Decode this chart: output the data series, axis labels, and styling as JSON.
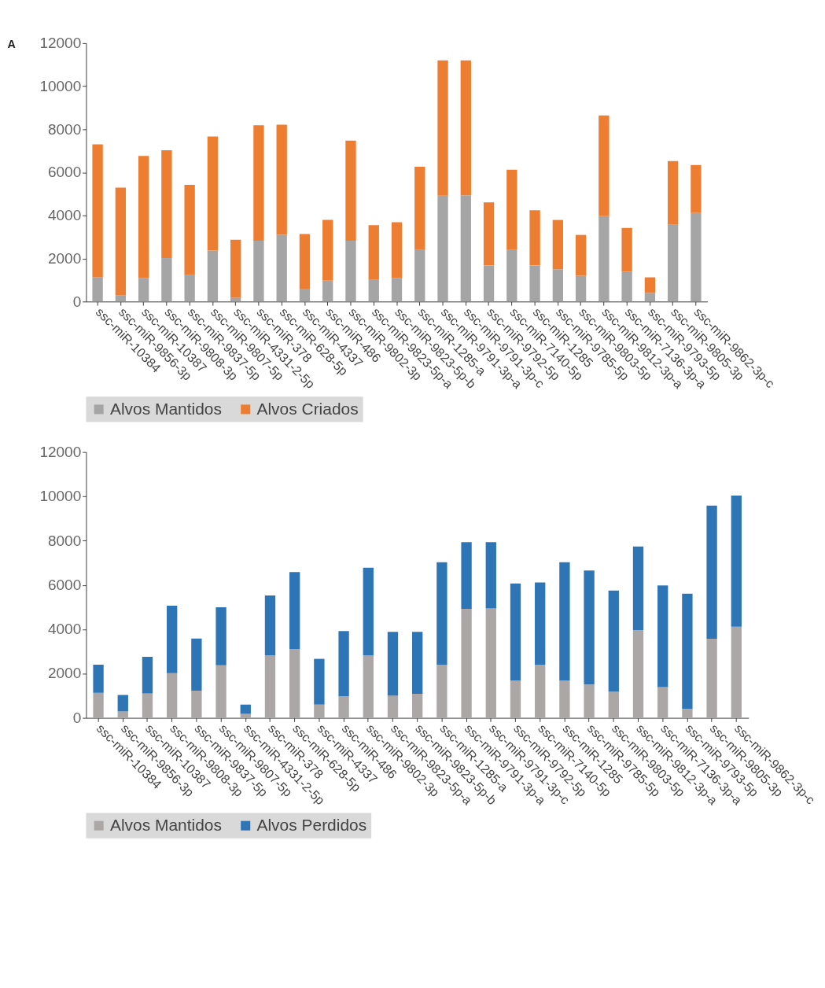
{
  "chart_data": [
    {
      "type": "bar",
      "stacked": true,
      "legend": "bottom",
      "annotations": [
        "A"
      ],
      "categories": [
        "ssc-miR-10384",
        "ssc-miR-9856-3p",
        "ssc-miR-10387",
        "ssc-miR-9808-3p",
        "ssc-miR-9837-5p",
        "ssc-miR-9807-5p",
        "ssc-miR-4331-2-5p",
        "ssc-miR-378",
        "ssc-miR-628-5p",
        "ssc-miR-4337",
        "ssc-miR-486",
        "ssc-miR-9802-3p",
        "ssc-miR-9823-5p-a",
        "ssc-miR-9823-5p-b",
        "ssc-miR-1285-a",
        "ssc-miR-9791-3p-a",
        "ssc-miR-9791-3p-c",
        "ssc-miR-9792-5p",
        "ssc-miR-7140-5p",
        "ssc-miR-1285",
        "ssc-miR-9785-5p",
        "ssc-miR-9803-5p",
        "ssc-miR-9812-3p-a",
        "ssc-miR-7136-3p-a",
        "ssc-miR-9793-5p",
        "ssc-miR-9805-3p",
        "ssc-miR-9862-3p-c"
      ],
      "series": [
        {
          "name": "Alvos Mantidos",
          "color": "#a5a5a5",
          "values": [
            1130,
            290,
            1100,
            2020,
            1230,
            2370,
            180,
            2830,
            3100,
            600,
            970,
            2830,
            1010,
            1090,
            2400,
            4920,
            4940,
            1680,
            2400,
            1680,
            1500,
            1195,
            3965,
            1390,
            400,
            3570,
            4115
          ]
        },
        {
          "name": "Alvos Criados",
          "color": "#ed7d31",
          "values": [
            6170,
            5000,
            5660,
            5005,
            4195,
            5300,
            2695,
            5360,
            5120,
            2540,
            2820,
            4650,
            2535,
            2595,
            3860,
            6285,
            6265,
            2930,
            3720,
            2560,
            2290,
            1900,
            4680,
            2030,
            725,
            2955,
            2225
          ]
        }
      ],
      "ylim": [
        0,
        12000
      ],
      "yticks": [
        0,
        2000,
        4000,
        6000,
        8000,
        10000,
        12000
      ]
    },
    {
      "type": "bar",
      "stacked": true,
      "legend": "bottom",
      "categories": [
        "ssc-miR-10384",
        "ssc-miR-9856-3p",
        "ssc-miR-10387",
        "ssc-miR-9808-3p",
        "ssc-miR-9837-5p",
        "ssc-miR-9807-5p",
        "ssc-miR-4331-2-5p",
        "ssc-miR-378",
        "ssc-miR-628-5p",
        "ssc-miR-4337",
        "ssc-miR-486",
        "ssc-miR-9802-3p",
        "ssc-miR-9823-5p-a",
        "ssc-miR-9823-5p-b",
        "ssc-miR-1285-a",
        "ssc-miR-9791-3p-a",
        "ssc-miR-9791-3p-c",
        "ssc-miR-9792-5p",
        "ssc-miR-7140-5p",
        "ssc-miR-1285",
        "ssc-miR-9785-5p",
        "ssc-miR-9803-5p",
        "ssc-miR-9812-3p-a",
        "ssc-miR-7136-3p-a",
        "ssc-miR-9793-5p",
        "ssc-miR-9805-3p",
        "ssc-miR-9862-3p-c"
      ],
      "series": [
        {
          "name": "Alvos Mantidos",
          "color": "#aba7a6",
          "values": [
            1130,
            290,
            1100,
            2020,
            1230,
            2370,
            180,
            2830,
            3100,
            600,
            970,
            2830,
            1010,
            1090,
            2400,
            4920,
            4940,
            1680,
            2400,
            1680,
            1500,
            1195,
            3965,
            1390,
            400,
            3570,
            4115
          ]
        },
        {
          "name": "Alvos Perdidos",
          "color": "#2e75b6",
          "values": [
            1270,
            745,
            1655,
            3040,
            2350,
            2625,
            420,
            2700,
            3485,
            2065,
            2950,
            3950,
            2875,
            2795,
            4625,
            3015,
            2995,
            4385,
            3710,
            5345,
            5150,
            4555,
            3770,
            4585,
            5205,
            6015,
            5920
          ]
        }
      ],
      "ylim": [
        0,
        12000
      ],
      "yticks": [
        0,
        2000,
        4000,
        6000,
        8000,
        10000,
        12000
      ]
    }
  ]
}
